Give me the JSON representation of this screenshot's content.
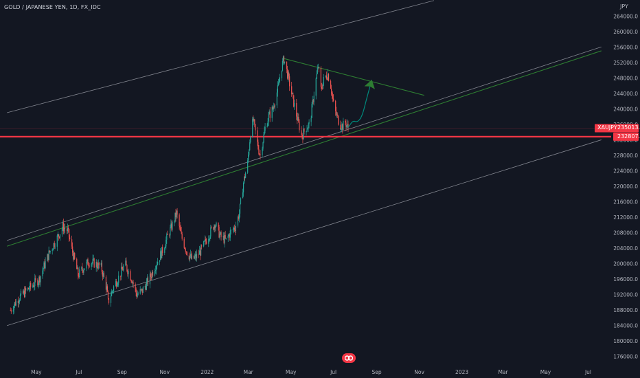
{
  "header": {
    "title": "GOLD / JAPANESE YEN, 1D, FX_IDC",
    "unit": "JPY"
  },
  "markers": {
    "symbol_label": "XAUJPY",
    "last_price": "235013.7",
    "level_price": "232807.2",
    "level_value": 232807.2,
    "symbol_color": "#f23645",
    "level_color": "#f23645"
  },
  "colors": {
    "up": "#26a69a",
    "down": "#ef5350",
    "channel": "#9598a1",
    "trend_green": "#2e7d32",
    "arrow": "#00897b",
    "arrow_head": "#2e7d32"
  },
  "logo": {
    "icon": "tradingview-logo-icon"
  },
  "chart_data": {
    "type": "candlestick",
    "title": "GOLD / JAPANESE YEN, 1D, FX_IDC",
    "ylabel": "JPY",
    "ylim": [
      174000,
      266000
    ],
    "grid": false,
    "y_ticks": [
      "264000.0",
      "260000.0",
      "256000.0",
      "252000.0",
      "248000.0",
      "244000.0",
      "240000.0",
      "236000.0",
      "232000.0",
      "228000.0",
      "224000.0",
      "220000.0",
      "216000.0",
      "212000.0",
      "208000.0",
      "204000.0",
      "200000.0",
      "196000.0",
      "192000.0",
      "188000.0",
      "184000.0",
      "180000.0",
      "176000.0"
    ],
    "x_ticks": [
      {
        "label": "May",
        "date": "2021-05-01"
      },
      {
        "label": "Jul",
        "date": "2021-07-01"
      },
      {
        "label": "Sep",
        "date": "2021-09-01"
      },
      {
        "label": "Nov",
        "date": "2021-11-01"
      },
      {
        "label": "2022",
        "date": "2022-01-01"
      },
      {
        "label": "Mar",
        "date": "2022-03-01"
      },
      {
        "label": "May",
        "date": "2022-05-01"
      },
      {
        "label": "Jul",
        "date": "2022-07-01"
      },
      {
        "label": "Sep",
        "date": "2022-09-01"
      },
      {
        "label": "Nov",
        "date": "2022-11-01"
      },
      {
        "label": "2023",
        "date": "2023-01-01"
      },
      {
        "label": "Mar",
        "date": "2023-03-01"
      },
      {
        "label": "May",
        "date": "2023-05-01"
      },
      {
        "label": "Jul",
        "date": "2023-07-01"
      }
    ],
    "price_path": [
      [
        "2021-03-25",
        188000
      ],
      [
        "2021-04-05",
        191000
      ],
      [
        "2021-04-20",
        193500
      ],
      [
        "2021-05-05",
        196000
      ],
      [
        "2021-05-20",
        203000
      ],
      [
        "2021-06-01",
        207000
      ],
      [
        "2021-06-08",
        209500
      ],
      [
        "2021-06-15",
        208500
      ],
      [
        "2021-06-22",
        203000
      ],
      [
        "2021-06-30",
        197000
      ],
      [
        "2021-07-08",
        199000
      ],
      [
        "2021-07-15",
        200500
      ],
      [
        "2021-07-25",
        200000
      ],
      [
        "2021-08-02",
        199000
      ],
      [
        "2021-08-10",
        193500
      ],
      [
        "2021-08-12",
        190000
      ],
      [
        "2021-08-20",
        194000
      ],
      [
        "2021-08-30",
        197500
      ],
      [
        "2021-09-05",
        200000
      ],
      [
        "2021-09-15",
        196000
      ],
      [
        "2021-09-22",
        192000
      ],
      [
        "2021-09-30",
        193000
      ],
      [
        "2021-10-10",
        196000
      ],
      [
        "2021-10-20",
        200000
      ],
      [
        "2021-10-28",
        203000
      ],
      [
        "2021-11-05",
        207000
      ],
      [
        "2021-11-12",
        210000
      ],
      [
        "2021-11-18",
        213000
      ],
      [
        "2021-11-25",
        207000
      ],
      [
        "2021-12-03",
        203000
      ],
      [
        "2021-12-10",
        201000
      ],
      [
        "2021-12-18",
        202000
      ],
      [
        "2021-12-25",
        204000
      ],
      [
        "2022-01-05",
        208000
      ],
      [
        "2022-01-12",
        210500
      ],
      [
        "2022-01-20",
        207000
      ],
      [
        "2022-01-28",
        206000
      ],
      [
        "2022-02-03",
        208000
      ],
      [
        "2022-02-10",
        209500
      ],
      [
        "2022-02-16",
        213000
      ],
      [
        "2022-02-22",
        221000
      ],
      [
        "2022-02-28",
        226000
      ],
      [
        "2022-03-04",
        234000
      ],
      [
        "2022-03-08",
        237000
      ],
      [
        "2022-03-15",
        230000
      ],
      [
        "2022-03-18",
        228000
      ],
      [
        "2022-03-25",
        235000
      ],
      [
        "2022-03-30",
        238000
      ],
      [
        "2022-04-05",
        240000
      ],
      [
        "2022-04-12",
        245000
      ],
      [
        "2022-04-18",
        251000
      ],
      [
        "2022-04-21",
        253000
      ],
      [
        "2022-04-26",
        249000
      ],
      [
        "2022-05-02",
        244000
      ],
      [
        "2022-05-07",
        240000
      ],
      [
        "2022-05-12",
        236000
      ],
      [
        "2022-05-17",
        233000
      ],
      [
        "2022-05-22",
        235000
      ],
      [
        "2022-05-28",
        236000
      ],
      [
        "2022-06-03",
        244000
      ],
      [
        "2022-06-09",
        251000
      ],
      [
        "2022-06-13",
        245000
      ],
      [
        "2022-06-18",
        248000
      ],
      [
        "2022-06-23",
        249000
      ],
      [
        "2022-06-27",
        246000
      ],
      [
        "2022-07-02",
        240000
      ],
      [
        "2022-07-06",
        238000
      ],
      [
        "2022-07-10",
        236000
      ],
      [
        "2022-07-14",
        235500
      ],
      [
        "2022-07-18",
        236500
      ],
      [
        "2022-07-22",
        235013.7
      ]
    ],
    "lines": [
      {
        "name": "",
        "kind": "upper-channel",
        "start": [
          "2021-03-20",
          239000
        ],
        "end": [
          "2022-11-22",
          268000
        ]
      },
      {
        "name": "",
        "kind": "middle-channel",
        "start": [
          "2021-03-20",
          206000
        ],
        "end": [
          "2023-07-20",
          256000
        ]
      },
      {
        "name": "",
        "kind": "green-support",
        "start": [
          "2021-03-20",
          204500
        ],
        "end": [
          "2023-07-20",
          255000
        ]
      },
      {
        "name": "",
        "kind": "lower-channel",
        "start": [
          "2021-03-20",
          184000
        ],
        "end": [
          "2023-07-20",
          232000
        ]
      },
      {
        "name": "",
        "kind": "green-resistance",
        "start": [
          "2022-04-21",
          253000
        ],
        "end": [
          "2022-11-08",
          243500
        ]
      }
    ],
    "horizontal_level": 232807.2,
    "projection": [
      [
        "2022-07-22",
        235200
      ],
      [
        "2022-07-29",
        237000
      ],
      [
        "2022-08-04",
        236500
      ],
      [
        "2022-08-11",
        238000
      ],
      [
        "2022-08-18",
        243000
      ],
      [
        "2022-08-25",
        247500
      ]
    ]
  }
}
